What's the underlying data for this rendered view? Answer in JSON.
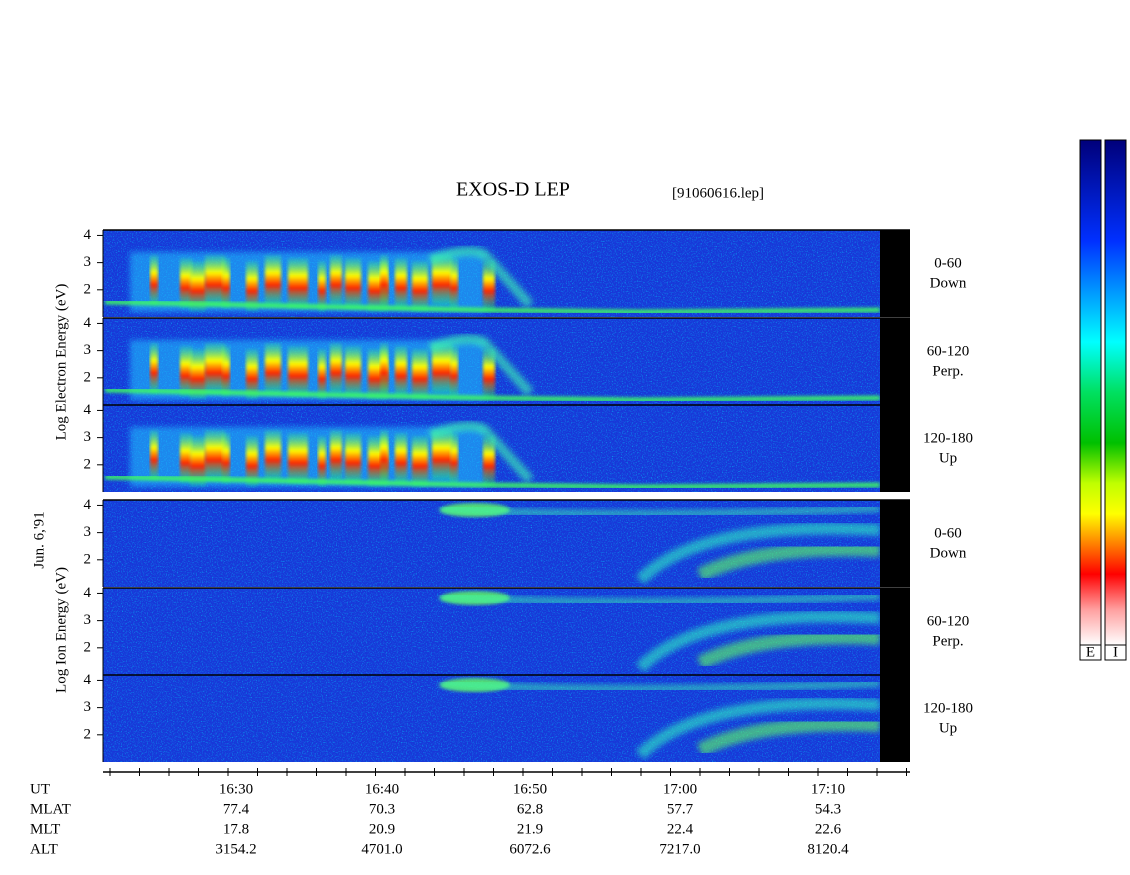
{
  "title": "EXOS-D LEP",
  "file": "[91060616.lep]",
  "date": "Jun. 6,'91",
  "electron_ylabel": "Log  Electron  Energy (eV)",
  "ion_ylabel": "Log   Ion   Energy (eV)",
  "ylim": [
    1,
    4.2
  ],
  "yticks": [
    2,
    3,
    4
  ],
  "panels": [
    {
      "range": "0-60",
      "direction": "Down"
    },
    {
      "range": "60-120",
      "direction": "Perp."
    },
    {
      "range": "120-180",
      "direction": "Up"
    },
    {
      "range": "0-60",
      "direction": "Down"
    },
    {
      "range": "60-120",
      "direction": "Perp."
    },
    {
      "range": "120-180",
      "direction": "Up"
    }
  ],
  "x_rows": [
    [
      "UT",
      "16:30",
      "16:40",
      "16:50",
      "17:00",
      "17:10"
    ],
    [
      "MLAT",
      "77.4",
      "70.3",
      "62.8",
      "57.7",
      "54.3"
    ],
    [
      "MLT",
      "17.8",
      "20.9",
      "21.9",
      "22.4",
      "22.6"
    ],
    [
      "ALT",
      "3154.2",
      "4701.0",
      "6072.6",
      "7217.0",
      "8120.4"
    ]
  ],
  "colorbar_labels": [
    "E",
    "I"
  ]
}
